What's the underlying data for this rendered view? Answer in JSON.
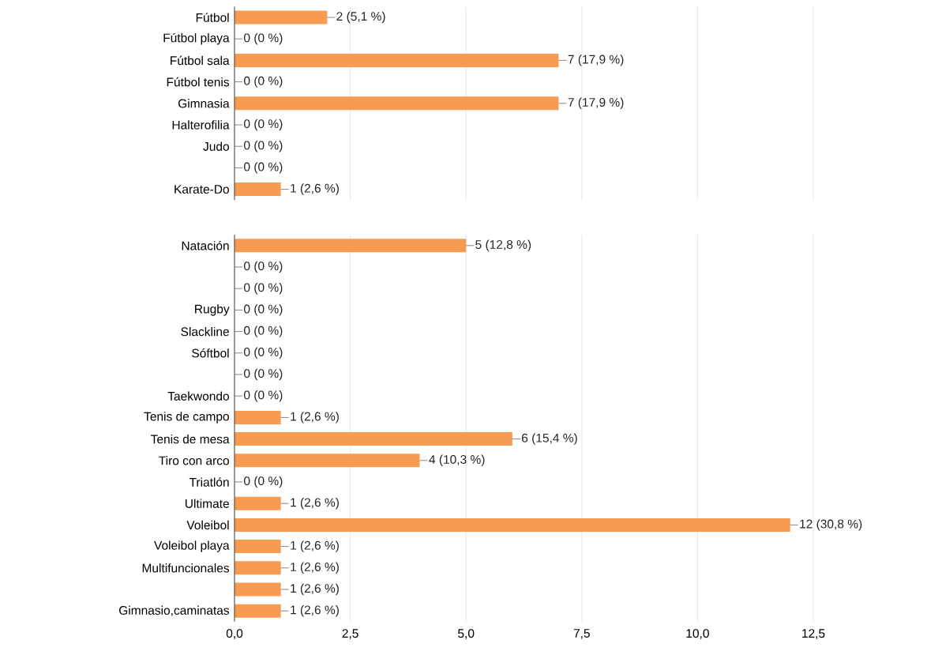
{
  "chart_data": [
    {
      "type": "bar",
      "orientation": "horizontal",
      "grid": "x",
      "tick_labels": "y",
      "categories": [
        "Fútbol",
        "Fútbol playa",
        "Fútbol sala",
        "Fútbol tenis",
        "Gimnasia",
        "Halterofilia",
        "Judo",
        null,
        "Karate-Do"
      ],
      "values": [
        2,
        0,
        7,
        0,
        7,
        0,
        0,
        0,
        1
      ],
      "value_labels": [
        "2 (5,1 %)",
        "0 (0 %)",
        "7 (17,9 %)",
        "0 (0 %)",
        "7 (17,9 %)",
        "0 (0 %)",
        "0 (0 %)",
        "0 (0 %)",
        "1 (2,6 %)"
      ],
      "color": "#f79b50",
      "xlim": [
        0,
        12.5
      ],
      "xticks": [
        {
          "value": 0,
          "label": null
        },
        {
          "value": 2.5,
          "label": null
        },
        {
          "value": 5,
          "label": null
        },
        {
          "value": 7.5,
          "label": null
        },
        {
          "value": 10,
          "label": null
        },
        {
          "value": 12.5,
          "label": null
        }
      ]
    },
    {
      "type": "bar",
      "orientation": "horizontal",
      "grid": "x",
      "categories": [
        "Natación",
        null,
        null,
        "Rugby",
        "Slackline",
        "Sóftbol",
        null,
        "Taekwondo",
        "Tenis de campo",
        "Tenis de mesa",
        "Tiro con arco",
        "Triatlón",
        "Ultimate",
        "Voleibol",
        "Voleibol playa",
        "Multifuncionales",
        null,
        "Gimnasio,caminatas"
      ],
      "values": [
        5,
        0,
        0,
        0,
        0,
        0,
        0,
        0,
        1,
        6,
        4,
        0,
        1,
        12,
        1,
        1,
        1,
        1
      ],
      "value_labels": [
        "5 (12,8 %)",
        "0 (0 %)",
        "0 (0 %)",
        "0 (0 %)",
        "0 (0 %)",
        "0 (0 %)",
        "0 (0 %)",
        "0 (0 %)",
        "1 (2,6 %)",
        "6 (15,4 %)",
        "4 (10,3 %)",
        "0 (0 %)",
        "1 (2,6 %)",
        "12 (30,8 %)",
        "1 (2,6 %)",
        "1 (2,6 %)",
        "1 (2,6 %)",
        "1 (2,6 %)"
      ],
      "color": "#f79b50",
      "xlim": [
        0,
        12.5
      ],
      "xticks": [
        {
          "value": 0,
          "label": "0,0"
        },
        {
          "value": 2.5,
          "label": "2,5"
        },
        {
          "value": 5,
          "label": "5,0"
        },
        {
          "value": 7.5,
          "label": "7,5"
        },
        {
          "value": 10,
          "label": "10,0"
        },
        {
          "value": 12.5,
          "label": "12,5"
        }
      ]
    }
  ]
}
